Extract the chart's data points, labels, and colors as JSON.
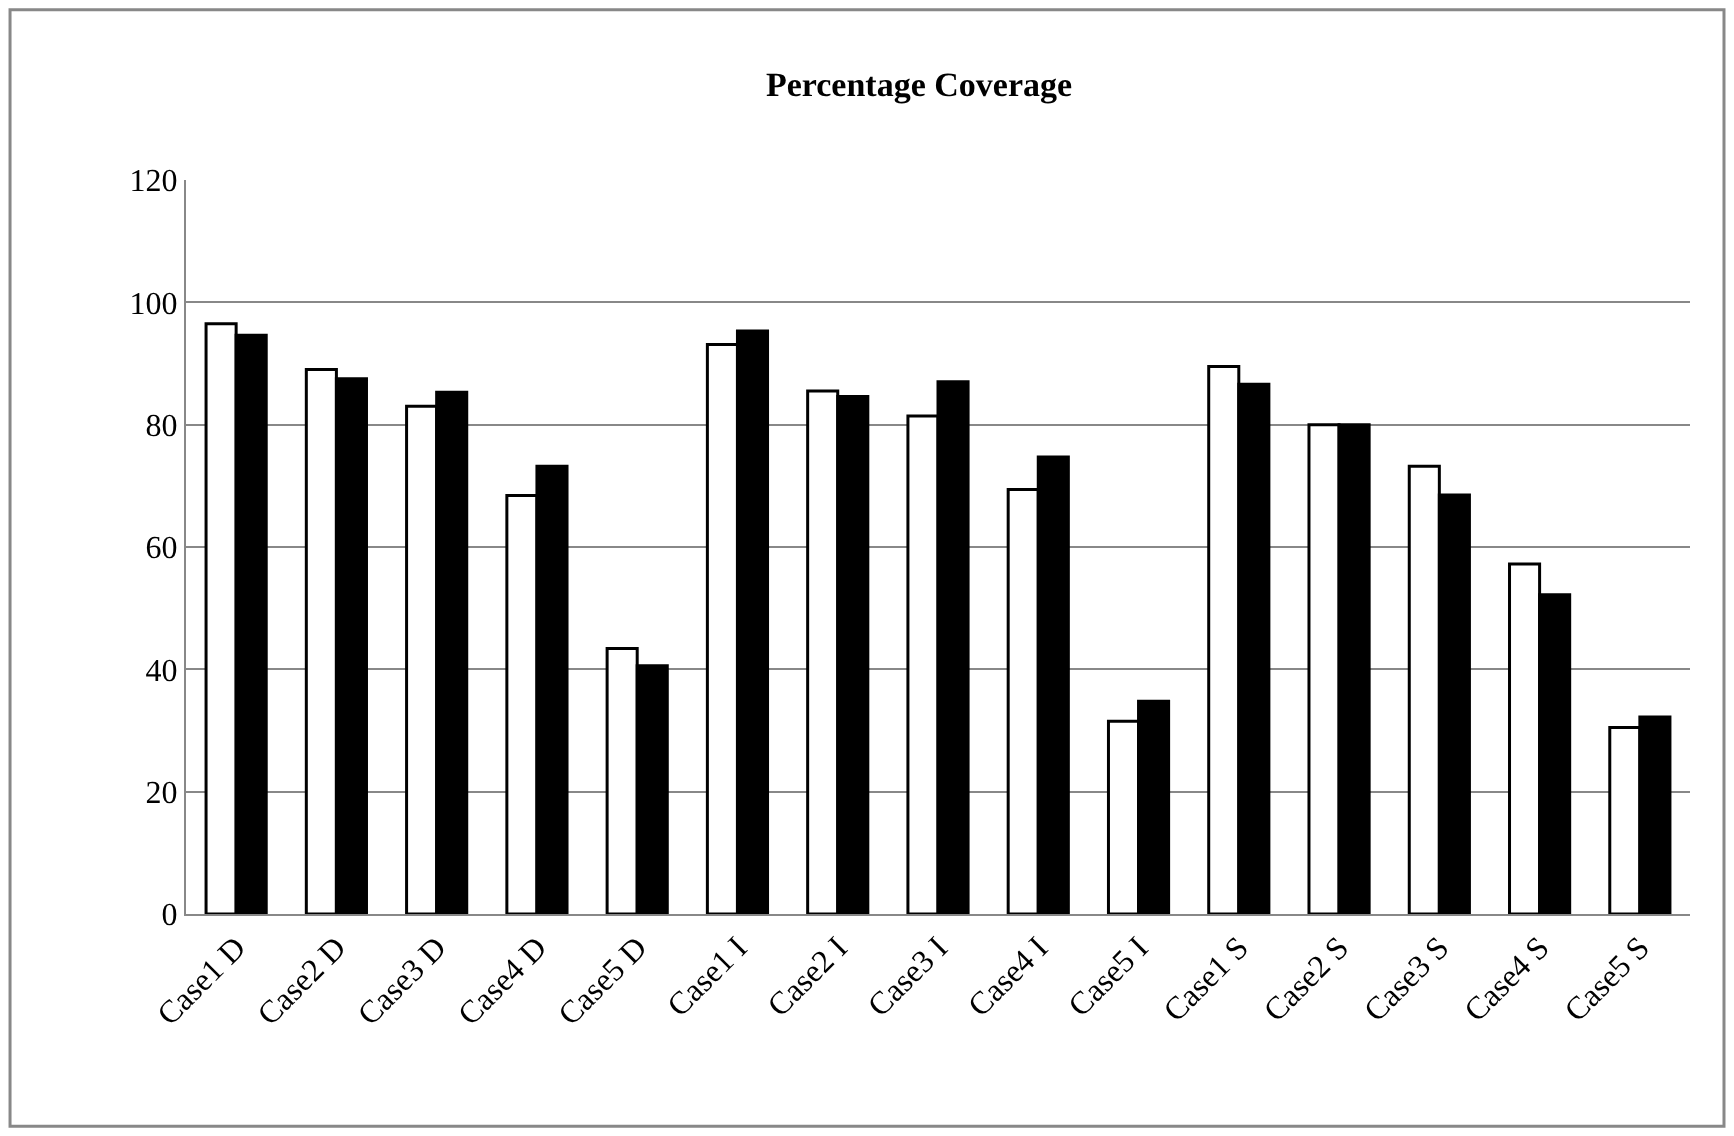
{
  "chart_data": {
    "type": "bar",
    "title": "Percentage Coverage",
    "categories": [
      "Case1 D",
      "Case2 D",
      "Case3 D",
      "Case4 D",
      "Case5 D",
      "Case1 I",
      "Case2 I",
      "Case3 I",
      "Case4 I",
      "Case5 I",
      "Case1 S",
      "Case2 S",
      "Case3 S",
      "Case4 S",
      "Case5 S"
    ],
    "series": [
      {
        "color": "#ffffff",
        "values": [
          96.5,
          89.0,
          83.0,
          68.4,
          43.4,
          93.1,
          85.5,
          81.4,
          69.4,
          31.5,
          89.5,
          80.0,
          73.2,
          57.2,
          30.5
        ]
      },
      {
        "color": "#000000",
        "values": [
          94.6,
          87.5,
          85.3,
          73.2,
          40.6,
          95.3,
          84.6,
          87.0,
          74.7,
          34.8,
          86.6,
          80.0,
          68.5,
          52.2,
          32.2
        ]
      }
    ],
    "ylim": [
      0,
      120
    ],
    "yticks": [
      0,
      20,
      40,
      60,
      80,
      100,
      120
    ],
    "grid": "y"
  }
}
